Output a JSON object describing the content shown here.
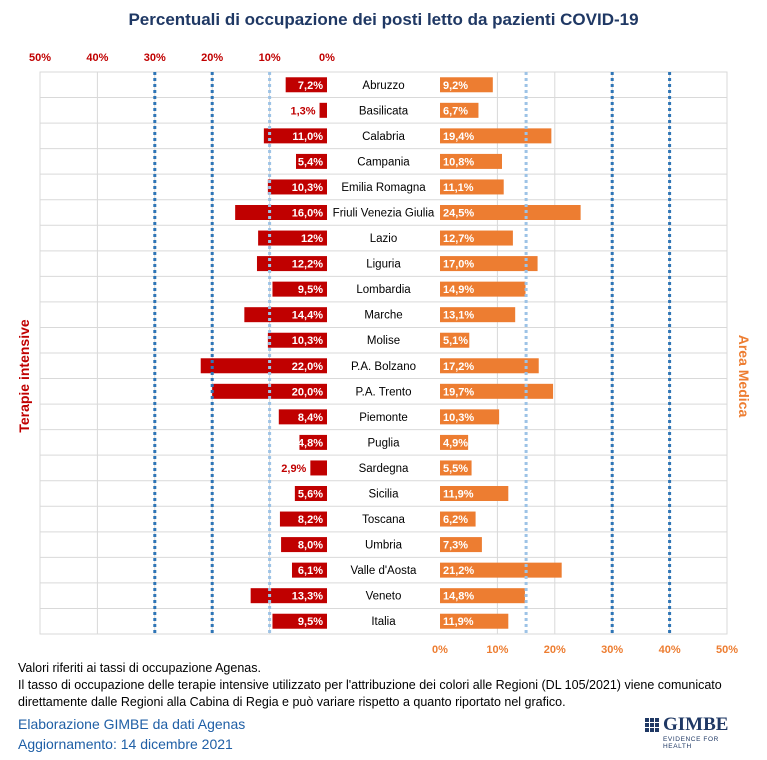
{
  "title": "Percentuali di occupazione dei posti letto da pazienti COVID-19",
  "left_axis_label": "Terapie intensive",
  "right_axis_label": "Area Medica",
  "left_ticks": [
    "50%",
    "40%",
    "30%",
    "20%",
    "10%",
    "0%"
  ],
  "right_ticks": [
    "0%",
    "10%",
    "20%",
    "30%",
    "40%",
    "50%"
  ],
  "colors": {
    "left": "#c00000",
    "right": "#ed7d31",
    "threshold_light": "#9dc3e6",
    "threshold_dark": "#2e75b6",
    "title": "#1f3864"
  },
  "chart_data": {
    "type": "bar",
    "orientation": "horizontal-butterfly",
    "title": "Percentuali di occupazione dei posti letto da pazienti COVID-19",
    "categories": [
      "Abruzzo",
      "Basilicata",
      "Calabria",
      "Campania",
      "Emilia Romagna",
      "Friuli Venezia Giulia",
      "Lazio",
      "Liguria",
      "Lombardia",
      "Marche",
      "Molise",
      "P.A. Bolzano",
      "P.A. Trento",
      "Piemonte",
      "Puglia",
      "Sardegna",
      "Sicilia",
      "Toscana",
      "Umbria",
      "Valle d'Aosta",
      "Veneto",
      "Italia"
    ],
    "series": [
      {
        "name": "Terapie intensive",
        "values": [
          7.2,
          1.3,
          11.0,
          5.4,
          10.3,
          16.0,
          12,
          12.2,
          9.5,
          14.4,
          10.3,
          22.0,
          20.0,
          8.4,
          4.8,
          2.9,
          5.6,
          8.2,
          8.0,
          6.1,
          13.3,
          9.5
        ],
        "labels": [
          "7,2%",
          "1,3%",
          "11,0%",
          "5,4%",
          "10,3%",
          "16,0%",
          "12%",
          "12,2%",
          "9,5%",
          "14,4%",
          "10,3%",
          "22,0%",
          "20,0%",
          "8,4%",
          "4,8%",
          "2,9%",
          "5,6%",
          "8,2%",
          "8,0%",
          "6,1%",
          "13,3%",
          "9,5%"
        ]
      },
      {
        "name": "Area Medica",
        "values": [
          9.2,
          6.7,
          19.4,
          10.8,
          11.1,
          24.5,
          12.7,
          17.0,
          14.9,
          13.1,
          5.1,
          17.2,
          19.7,
          10.3,
          4.9,
          5.5,
          11.9,
          6.2,
          7.3,
          21.2,
          14.8,
          11.9
        ],
        "labels": [
          "9,2%",
          "6,7%",
          "19,4%",
          "10,8%",
          "11,1%",
          "24,5%",
          "12,7%",
          "17,0%",
          "14,9%",
          "13,1%",
          "5,1%",
          "17,2%",
          "19,7%",
          "10,3%",
          "4,9%",
          "5,5%",
          "11,9%",
          "6,2%",
          "7,3%",
          "21,2%",
          "14,8%",
          "11,9%"
        ]
      }
    ],
    "xlim": [
      0,
      50
    ],
    "thresholds": {
      "terapie_intensive": [
        10,
        20,
        30
      ],
      "area_medica": [
        15,
        30,
        40
      ]
    },
    "grid": true
  },
  "footer": {
    "note1": "Valori riferiti ai tassi di occupazione Agenas.",
    "note2": "Il tasso di occupazione delle terapie intensive utilizzato per l'attribuzione dei colori alle Regioni (DL 105/2021) viene comunicato direttamente dalle Regioni alla Cabina di Regia e può variare rispetto a quanto riportato nel grafico.",
    "source1": "Elaborazione GIMBE da dati Agenas",
    "source2": "Aggiornamento: 14 dicembre 2021",
    "logo_text": "GIMBE",
    "logo_sub": "EVIDENCE FOR HEALTH"
  }
}
